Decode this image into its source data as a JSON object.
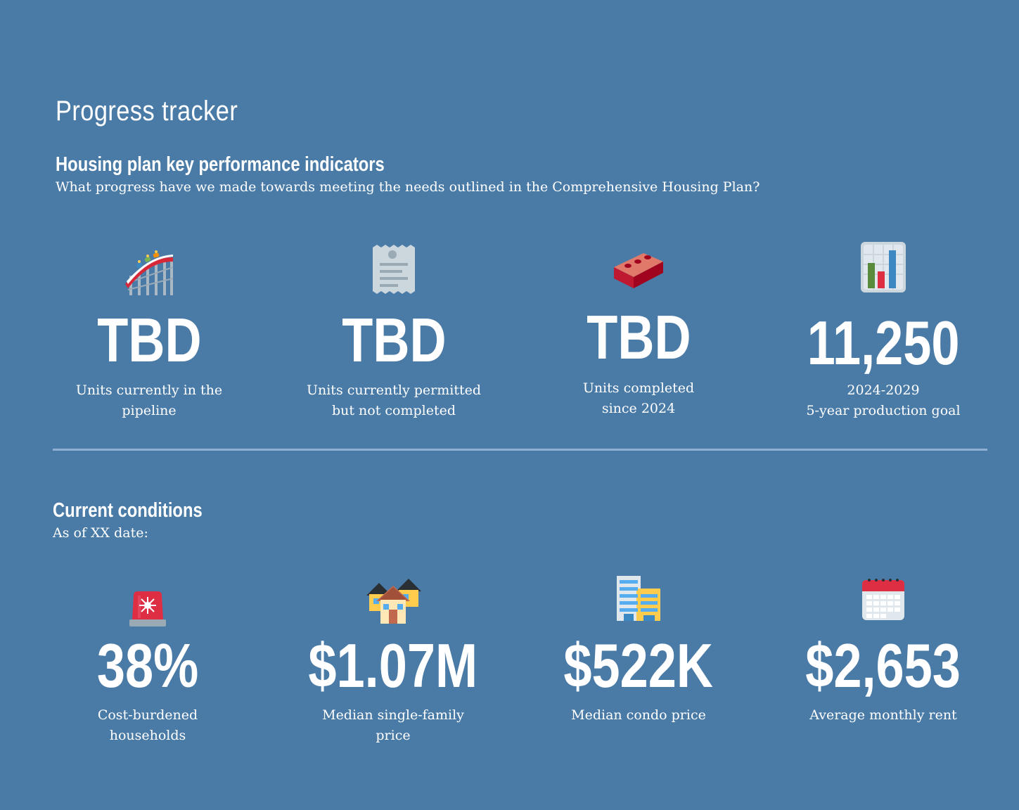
{
  "page": {
    "title": "Progress tracker"
  },
  "kpi_section": {
    "heading": "Housing plan key performance indicators",
    "subheading": "What progress have we made towards meeting the needs outlined in the Comprehensive Housing Plan?",
    "items": [
      {
        "icon": "roller-coaster-icon",
        "value": "TBD",
        "label_line1": "Units currently in the",
        "label_line2": "pipeline"
      },
      {
        "icon": "receipt-icon",
        "value": "TBD",
        "label_line1": "Units currently permitted",
        "label_line2": "but not completed"
      },
      {
        "icon": "brick-icon",
        "value": "TBD",
        "label_line1": "Units completed",
        "label_line2": "since 2024"
      },
      {
        "icon": "bar-chart-icon",
        "value": "11,250",
        "label_line1": "2024-2029",
        "label_line2": "5-year production goal"
      }
    ]
  },
  "conditions_section": {
    "heading": "Current conditions",
    "subheading": "As of XX date:",
    "items": [
      {
        "icon": "siren-light-icon",
        "value": "38%",
        "label_line1": "Cost-burdened",
        "label_line2": "households"
      },
      {
        "icon": "houses-icon",
        "value": "$1.07M",
        "label_line1": "Median single-family",
        "label_line2": "price"
      },
      {
        "icon": "office-building-icon",
        "value": "$522K",
        "label_line1": "Median condo price",
        "label_line2": ""
      },
      {
        "icon": "calendar-icon",
        "value": "$2,653",
        "label_line1": "Average monthly rent",
        "label_line2": ""
      }
    ]
  },
  "colors": {
    "background": "#4a7ba7",
    "divider": "#8fb0d2",
    "text": "#ffffff"
  }
}
